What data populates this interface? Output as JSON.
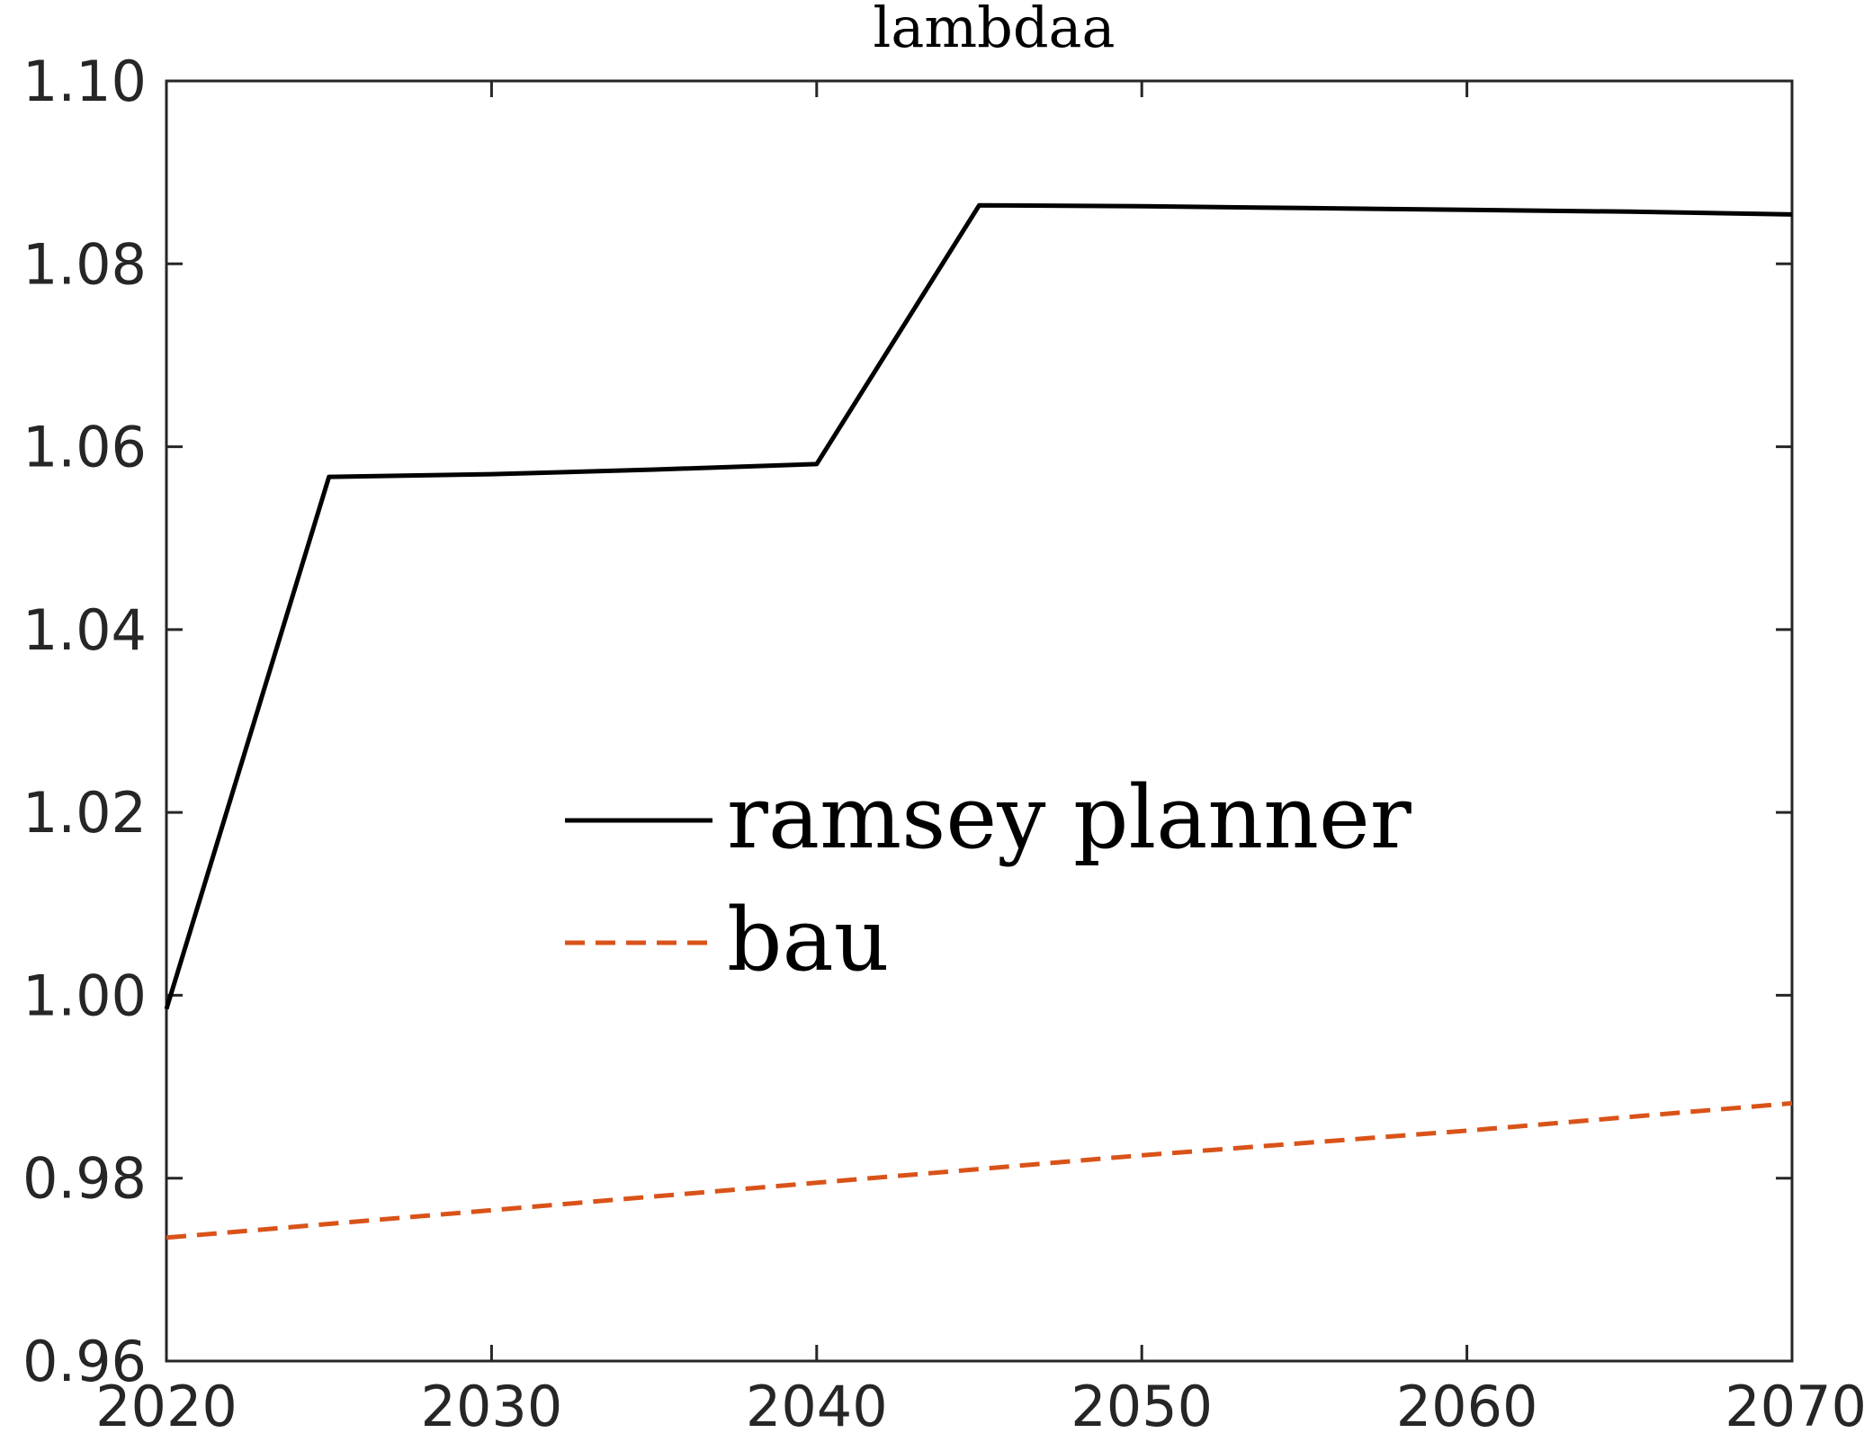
{
  "chart_data": {
    "type": "line",
    "title": "lambdaa",
    "xlabel": "",
    "ylabel": "",
    "xlim": [
      2020,
      2070
    ],
    "ylim": [
      0.96,
      1.1
    ],
    "x_ticks": [
      "2020",
      "2030",
      "2040",
      "2050",
      "2060",
      "2070"
    ],
    "y_ticks": [
      "0.96",
      "0.98",
      "1.00",
      "1.02",
      "1.04",
      "1.06",
      "1.08",
      "1.10"
    ],
    "grid": false,
    "legend_position": "center",
    "series": [
      {
        "name": "ramsey planner",
        "color": "#000000",
        "dash": "solid",
        "x": [
          2020,
          2025,
          2030,
          2035,
          2040,
          2045,
          2050,
          2055,
          2060,
          2065,
          2070
        ],
        "y": [
          0.9985,
          1.0567,
          1.057,
          1.0575,
          1.0581,
          1.0864,
          1.0863,
          1.0861,
          1.0859,
          1.0857,
          1.0854
        ]
      },
      {
        "name": "bau",
        "color": "#D95319",
        "dash": "dashed",
        "x": [
          2020,
          2030,
          2040,
          2050,
          2060,
          2070
        ],
        "y": [
          0.9735,
          0.9765,
          0.9795,
          0.9825,
          0.9852,
          0.9882
        ]
      }
    ]
  }
}
